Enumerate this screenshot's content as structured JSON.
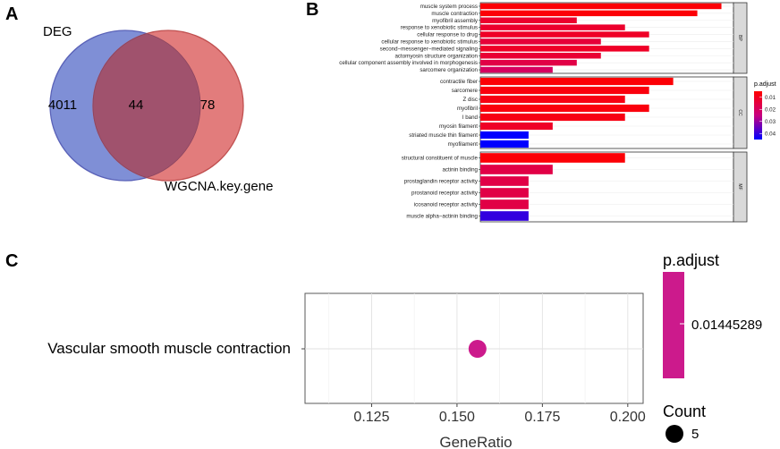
{
  "panels": {
    "a": "A",
    "b": "B",
    "c": "C"
  },
  "colors": {
    "deg": "#7f8fd6",
    "wgcna": "#e27c7c",
    "overlap": "#a0526d",
    "padj_high": "#ff0000",
    "padj_low": "#0000ff",
    "dot": "#cc1a8c"
  },
  "chart_data": [
    {
      "type": "venn",
      "sets": [
        {
          "name": "DEG",
          "only_count": "4011"
        },
        {
          "name": "WGCNA.key.gene",
          "only_count": "78"
        }
      ],
      "intersection_count": "44"
    },
    {
      "type": "bar",
      "orientation": "horizontal",
      "legend": {
        "title": "p.adjust",
        "ticks": [
          "0.01",
          "0.02",
          "0.03",
          "0.04"
        ],
        "range": [
          0.005,
          0.045
        ]
      },
      "groups": [
        {
          "name": "BP",
          "terms": [
            {
              "label": "muscle system process",
              "count": 10,
              "padj": 0.006
            },
            {
              "label": "muscle contraction",
              "count": 9,
              "padj": 0.006
            },
            {
              "label": "myofibril assembly",
              "count": 4,
              "padj": 0.012
            },
            {
              "label": "response to xenobiotic stimulus",
              "count": 6,
              "padj": 0.012
            },
            {
              "label": "cellular response to drug",
              "count": 7,
              "padj": 0.011
            },
            {
              "label": "cellular response to xenobiotic stimulus",
              "count": 5,
              "padj": 0.014
            },
            {
              "label": "second−messenger−mediated signaling",
              "count": 7,
              "padj": 0.011
            },
            {
              "label": "actomyosin structure organization",
              "count": 5,
              "padj": 0.013
            },
            {
              "label": "cellular component assembly involved in morphogenesis",
              "count": 4,
              "padj": 0.016
            },
            {
              "label": "sarcomere organization",
              "count": 3,
              "padj": 0.02
            }
          ]
        },
        {
          "name": "CC",
          "terms": [
            {
              "label": "contractile fiber",
              "count": 8,
              "padj": 0.006
            },
            {
              "label": "sarcomere",
              "count": 7,
              "padj": 0.007
            },
            {
              "label": "Z disc",
              "count": 6,
              "padj": 0.008
            },
            {
              "label": "myofibril",
              "count": 7,
              "padj": 0.007
            },
            {
              "label": "I band",
              "count": 6,
              "padj": 0.008
            },
            {
              "label": "myosin filament",
              "count": 3,
              "padj": 0.011
            },
            {
              "label": "striated muscle thin filament",
              "count": 2,
              "padj": 0.045
            },
            {
              "label": "myofilament",
              "count": 2,
              "padj": 0.045
            }
          ]
        },
        {
          "name": "MF",
          "terms": [
            {
              "label": "structural constituent of muscle",
              "count": 6,
              "padj": 0.006
            },
            {
              "label": "actinin binding",
              "count": 3,
              "padj": 0.016
            },
            {
              "label": "prostaglandin receptor activity",
              "count": 2,
              "padj": 0.016
            },
            {
              "label": "prostanoid receptor activity",
              "count": 2,
              "padj": 0.016
            },
            {
              "label": "icosanoid receptor activity",
              "count": 2,
              "padj": 0.016
            },
            {
              "label": "muscle alpha−actinin binding",
              "count": 2,
              "padj": 0.04
            }
          ]
        }
      ],
      "x_range": [
        0,
        10.5
      ]
    },
    {
      "type": "scatter",
      "term": "Vascular smooth muscle contraction",
      "gene_ratio": 0.156,
      "x_range": [
        0.1055,
        0.2045
      ],
      "x_ticks": [
        "0.125",
        "0.150",
        "0.175",
        "0.200"
      ],
      "xlabel": "GeneRatio",
      "legend": {
        "padj_title": "p.adjust",
        "padj_value": "0.01445289",
        "count_title": "Count",
        "count_value": "5"
      }
    }
  ]
}
